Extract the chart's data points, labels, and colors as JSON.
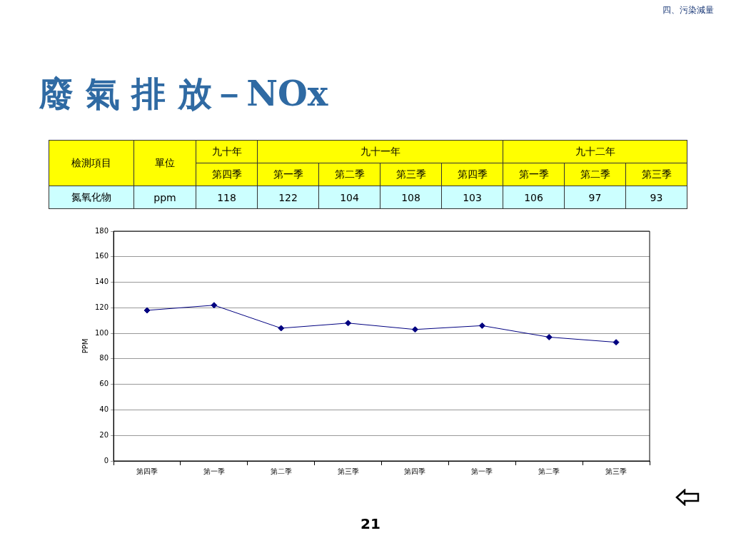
{
  "chart_data": {
    "type": "line",
    "title": "廢 氣 排 放－NOx",
    "ylabel": "PPM",
    "categories": [
      "第四季",
      "第一季",
      "第二季",
      "第三季",
      "第四季",
      "第一季",
      "第二季",
      "第三季"
    ],
    "series": [
      {
        "color": "#000080",
        "values": [
          118,
          122,
          104,
          108,
          103,
          106,
          97,
          93
        ]
      }
    ],
    "ylim": [
      0,
      180
    ],
    "yticks": [
      0,
      20,
      40,
      60,
      80,
      100,
      120,
      140,
      160,
      180
    ],
    "grid": "y",
    "legend": false,
    "marker": "diamond",
    "line_style": "solid",
    "annotations": [
      "四、污染減量",
      "檢測項目",
      "單位",
      "九十年",
      "九十一年",
      "九十二年",
      "氮氧化物",
      "ppm",
      "21",
      "118",
      "122",
      "104",
      "108",
      "103",
      "106",
      "97",
      "93"
    ]
  }
}
